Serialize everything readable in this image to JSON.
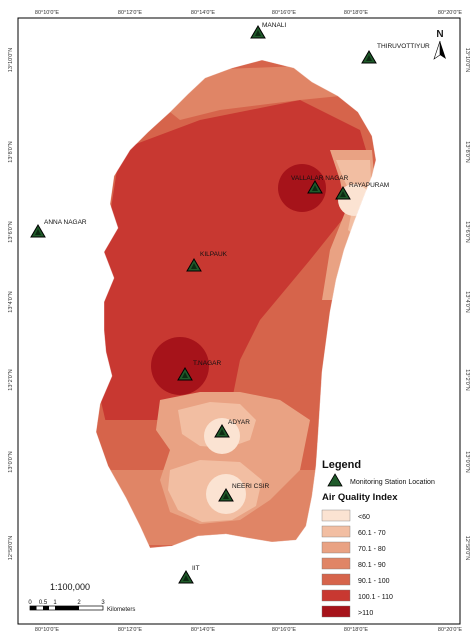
{
  "north": {
    "label": "N"
  },
  "scale": {
    "ratio": "1:100,000",
    "ticks": [
      "0",
      "0.5",
      "1",
      "2",
      "3"
    ],
    "unit": "Kilometers"
  },
  "coords": {
    "top": [
      "80°10'0\"E",
      "80°12'0\"E",
      "80°14'0\"E",
      "80°16'0\"E",
      "80°18'0\"E",
      "80°20'0\"E"
    ],
    "bottom": [
      "80°10'0\"E",
      "80°12'0\"E",
      "80°14'0\"E",
      "80°16'0\"E",
      "80°18'0\"E",
      "80°20'0\"E"
    ],
    "left": [
      "13°10'0\"N",
      "13°8'0\"N",
      "13°6'0\"N",
      "13°4'0\"N",
      "13°2'0\"N",
      "13°0'0\"N",
      "12°58'0\"N"
    ],
    "right": [
      "13°10'0\"N",
      "13°8'0\"N",
      "13°6'0\"N",
      "13°4'0\"N",
      "13°2'0\"N",
      "13°0'0\"N",
      "12°58'0\"N"
    ]
  },
  "stations": [
    {
      "name": "MANALI"
    },
    {
      "name": "THIRUVOTTIYUR"
    },
    {
      "name": "VALLALAR NAGAR"
    },
    {
      "name": "RAYAPURAM"
    },
    {
      "name": "ANNA NAGAR"
    },
    {
      "name": "KILPAUK"
    },
    {
      "name": "T.NAGAR"
    },
    {
      "name": "ADYAR"
    },
    {
      "name": "NEERI CSIR"
    },
    {
      "name": "IIT"
    }
  ],
  "legend": {
    "title": "Legend",
    "station_label": "Monitoring Station Location",
    "aqi_title": "Air Quality Index",
    "classes": [
      {
        "label": "<60",
        "color": "#fbe3d2"
      },
      {
        "label": "60.1 - 70",
        "color": "#f2bea2"
      },
      {
        "label": "70.1 - 80",
        "color": "#e9a283"
      },
      {
        "label": "80.1 - 90",
        "color": "#e08566"
      },
      {
        "label": "90.1 - 100",
        "color": "#d6644b"
      },
      {
        "label": "100.1 - 110",
        "color": "#c83831"
      },
      {
        "label": ">110",
        "color": "#a6131a"
      }
    ]
  },
  "colors": {
    "station_marker": "#1f5a2a",
    "frame": "#000000"
  }
}
